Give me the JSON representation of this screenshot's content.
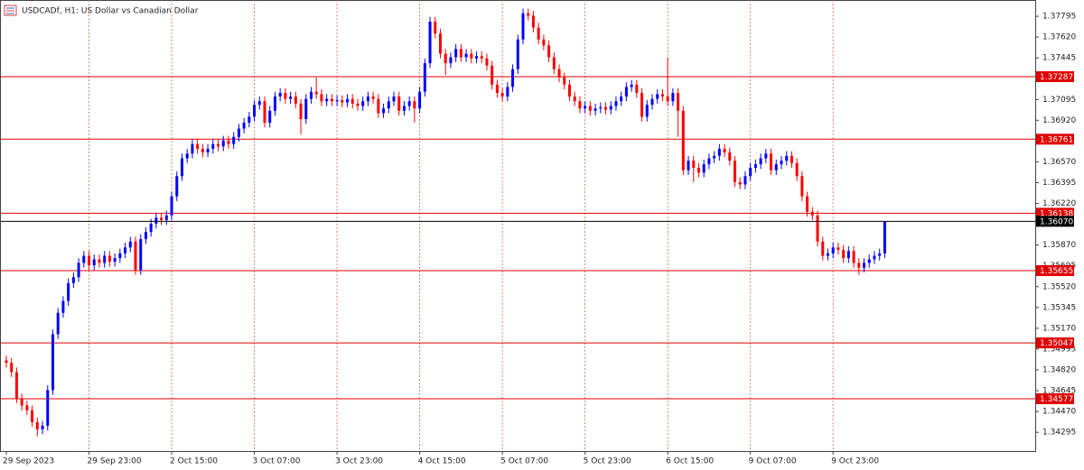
{
  "chart_data": {
    "type": "candlestick",
    "title": "USDCADf, H1:  US Dollar vs Canadian Dollar",
    "categories": [
      "29 Sep 2023",
      null,
      null,
      null,
      null,
      null,
      null,
      null,
      null,
      null,
      null,
      null,
      null,
      null,
      null,
      null,
      "29 Sep 23:00",
      null,
      null,
      null,
      null,
      null,
      null,
      null,
      null,
      null,
      null,
      null,
      null,
      null,
      null,
      null,
      "2 Oct 15:00",
      null,
      null,
      null,
      null,
      null,
      null,
      null,
      null,
      null,
      null,
      null,
      null,
      null,
      null,
      null,
      "3 Oct 07:00",
      null,
      null,
      null,
      null,
      null,
      null,
      null,
      null,
      null,
      null,
      null,
      null,
      null,
      null,
      null,
      "3 Oct 23:00",
      null,
      null,
      null,
      null,
      null,
      null,
      null,
      null,
      null,
      null,
      null,
      null,
      null,
      null,
      null,
      "4 Oct 15:00",
      null,
      null,
      null,
      null,
      null,
      null,
      null,
      null,
      null,
      null,
      null,
      null,
      null,
      null,
      null,
      "5 Oct 07:00",
      null,
      null,
      null,
      null,
      null,
      null,
      null,
      null,
      null,
      null,
      null,
      null,
      null,
      null,
      null,
      "5 Oct 23:00",
      null,
      null,
      null,
      null,
      null,
      null,
      null,
      null,
      null,
      null,
      null,
      null,
      null,
      null,
      null,
      "6 Oct 15:00",
      null,
      null,
      null,
      null,
      null,
      null,
      null,
      null,
      null,
      null,
      null,
      null,
      null,
      null,
      null,
      "9 Oct 07:00",
      null,
      null,
      null,
      null,
      null,
      null,
      null,
      null,
      null,
      null,
      null,
      null,
      null,
      null,
      null,
      "9 Oct 23:00",
      null,
      null,
      null,
      null,
      null,
      null,
      null,
      null,
      null,
      null
    ],
    "ohlc": [
      [
        1.349,
        1.3494,
        1.3484,
        1.3488
      ],
      [
        1.3488,
        1.3492,
        1.3476,
        1.348
      ],
      [
        1.348,
        1.3484,
        1.3454,
        1.3458
      ],
      [
        1.3458,
        1.3462,
        1.3448,
        1.3452
      ],
      [
        1.3452,
        1.3456,
        1.3444,
        1.3448
      ],
      [
        1.3448,
        1.3452,
        1.3434,
        1.3438
      ],
      [
        1.3438,
        1.3442,
        1.3426,
        1.3432
      ],
      [
        1.3432,
        1.3439,
        1.3428,
        1.3435
      ],
      [
        1.3435,
        1.3469,
        1.3431,
        1.3465
      ],
      [
        1.3465,
        1.3516,
        1.3461,
        1.3512
      ],
      [
        1.3512,
        1.3534,
        1.3508,
        1.353
      ],
      [
        1.353,
        1.3544,
        1.3526,
        1.354
      ],
      [
        1.354,
        1.3559,
        1.3536,
        1.3555
      ],
      [
        1.3555,
        1.3564,
        1.3551,
        1.356
      ],
      [
        1.356,
        1.3576,
        1.3556,
        1.3572
      ],
      [
        1.3572,
        1.3582,
        1.3568,
        1.3578
      ],
      [
        1.3578,
        1.3582,
        1.3566,
        1.357
      ],
      [
        1.357,
        1.3579,
        1.3566,
        1.3575
      ],
      [
        1.3575,
        1.3579,
        1.3568,
        1.3572
      ],
      [
        1.3572,
        1.3582,
        1.3568,
        1.3578
      ],
      [
        1.3578,
        1.3582,
        1.3569,
        1.3573
      ],
      [
        1.3573,
        1.358,
        1.3569,
        1.3576
      ],
      [
        1.3576,
        1.3584,
        1.3572,
        1.358
      ],
      [
        1.358,
        1.3589,
        1.3576,
        1.3585
      ],
      [
        1.3585,
        1.3594,
        1.3581,
        1.359
      ],
      [
        1.359,
        1.3594,
        1.3562,
        1.3566
      ],
      [
        1.3566,
        1.3596,
        1.3562,
        1.3592
      ],
      [
        1.3592,
        1.3602,
        1.3588,
        1.3598
      ],
      [
        1.3598,
        1.3609,
        1.3594,
        1.3605
      ],
      [
        1.3605,
        1.3614,
        1.3601,
        1.361
      ],
      [
        1.361,
        1.3614,
        1.3604,
        1.3608
      ],
      [
        1.3608,
        1.3616,
        1.3604,
        1.3612
      ],
      [
        1.3612,
        1.3632,
        1.3608,
        1.3628
      ],
      [
        1.3628,
        1.3649,
        1.3624,
        1.3645
      ],
      [
        1.3645,
        1.3664,
        1.3641,
        1.366
      ],
      [
        1.366,
        1.3668,
        1.3656,
        1.3664
      ],
      [
        1.3664,
        1.3676,
        1.366,
        1.3672
      ],
      [
        1.3672,
        1.3676,
        1.3664,
        1.3668
      ],
      [
        1.3668,
        1.3672,
        1.3661,
        1.3665
      ],
      [
        1.3665,
        1.3672,
        1.3661,
        1.3668
      ],
      [
        1.3668,
        1.3676,
        1.3664,
        1.3672
      ],
      [
        1.3672,
        1.3676,
        1.3666,
        1.367
      ],
      [
        1.367,
        1.3679,
        1.3666,
        1.3675
      ],
      [
        1.3675,
        1.3679,
        1.3668,
        1.3672
      ],
      [
        1.3672,
        1.3682,
        1.3668,
        1.3678
      ],
      [
        1.3678,
        1.3689,
        1.3674,
        1.3685
      ],
      [
        1.3685,
        1.3694,
        1.3681,
        1.369
      ],
      [
        1.369,
        1.3699,
        1.3686,
        1.3695
      ],
      [
        1.3695,
        1.3709,
        1.3691,
        1.3705
      ],
      [
        1.3705,
        1.3712,
        1.3701,
        1.3708
      ],
      [
        1.3708,
        1.3712,
        1.3686,
        1.369
      ],
      [
        1.369,
        1.3704,
        1.3686,
        1.37
      ],
      [
        1.37,
        1.3716,
        1.3696,
        1.3712
      ],
      [
        1.3712,
        1.3719,
        1.3708,
        1.3715
      ],
      [
        1.3715,
        1.3719,
        1.3706,
        1.371
      ],
      [
        1.371,
        1.3716,
        1.3706,
        1.3712
      ],
      [
        1.3712,
        1.3716,
        1.3702,
        1.3706
      ],
      [
        1.3706,
        1.371,
        1.368,
        1.3693
      ],
      [
        1.3693,
        1.3714,
        1.3689,
        1.371
      ],
      [
        1.371,
        1.372,
        1.3706,
        1.3716
      ],
      [
        1.3716,
        1.3728,
        1.371,
        1.3714
      ],
      [
        1.3714,
        1.3718,
        1.3704,
        1.3708
      ],
      [
        1.3708,
        1.3714,
        1.3704,
        1.371
      ],
      [
        1.371,
        1.3714,
        1.3704,
        1.3708
      ],
      [
        1.3708,
        1.3713,
        1.3704,
        1.3709
      ],
      [
        1.3709,
        1.3713,
        1.3703,
        1.3707
      ],
      [
        1.3707,
        1.3714,
        1.3703,
        1.371
      ],
      [
        1.371,
        1.3714,
        1.3702,
        1.3706
      ],
      [
        1.3706,
        1.371,
        1.37,
        1.3704
      ],
      [
        1.3704,
        1.3712,
        1.37,
        1.3708
      ],
      [
        1.3708,
        1.3716,
        1.3704,
        1.3712
      ],
      [
        1.3712,
        1.3716,
        1.3706,
        1.371
      ],
      [
        1.371,
        1.3714,
        1.3694,
        1.3698
      ],
      [
        1.3698,
        1.3706,
        1.3694,
        1.3702
      ],
      [
        1.3702,
        1.3712,
        1.3698,
        1.3708
      ],
      [
        1.3708,
        1.3716,
        1.3704,
        1.3712
      ],
      [
        1.3712,
        1.3716,
        1.3696,
        1.37
      ],
      [
        1.37,
        1.3708,
        1.3696,
        1.3704
      ],
      [
        1.3704,
        1.3712,
        1.37,
        1.3708
      ],
      [
        1.3708,
        1.3712,
        1.369,
        1.3702
      ],
      [
        1.3702,
        1.372,
        1.3698,
        1.3716
      ],
      [
        1.3716,
        1.3744,
        1.3712,
        1.374
      ],
      [
        1.374,
        1.3779,
        1.3736,
        1.3775
      ],
      [
        1.3775,
        1.3779,
        1.3761,
        1.3765
      ],
      [
        1.3765,
        1.3769,
        1.3744,
        1.3748
      ],
      [
        1.3748,
        1.3752,
        1.373,
        1.374
      ],
      [
        1.374,
        1.3749,
        1.3736,
        1.3745
      ],
      [
        1.3745,
        1.3756,
        1.3741,
        1.3752
      ],
      [
        1.3752,
        1.3756,
        1.3741,
        1.3745
      ],
      [
        1.3745,
        1.3752,
        1.3741,
        1.3748
      ],
      [
        1.3748,
        1.3752,
        1.374,
        1.3744
      ],
      [
        1.3744,
        1.375,
        1.374,
        1.3746
      ],
      [
        1.3746,
        1.375,
        1.374,
        1.3744
      ],
      [
        1.3744,
        1.3748,
        1.3734,
        1.3738
      ],
      [
        1.3738,
        1.3742,
        1.3718,
        1.3722
      ],
      [
        1.3722,
        1.3726,
        1.3711,
        1.3715
      ],
      [
        1.3715,
        1.3719,
        1.3708,
        1.3712
      ],
      [
        1.3712,
        1.3724,
        1.3708,
        1.372
      ],
      [
        1.372,
        1.3739,
        1.3716,
        1.3735
      ],
      [
        1.3735,
        1.3764,
        1.3731,
        1.376
      ],
      [
        1.376,
        1.3786,
        1.3756,
        1.3782
      ],
      [
        1.3782,
        1.3786,
        1.3776,
        1.378
      ],
      [
        1.378,
        1.3784,
        1.3766,
        1.377
      ],
      [
        1.377,
        1.3774,
        1.3756,
        1.376
      ],
      [
        1.376,
        1.3764,
        1.3751,
        1.3755
      ],
      [
        1.3755,
        1.3759,
        1.3741,
        1.3745
      ],
      [
        1.3745,
        1.3749,
        1.3731,
        1.3735
      ],
      [
        1.3735,
        1.3739,
        1.3724,
        1.3728
      ],
      [
        1.3728,
        1.3732,
        1.3718,
        1.3722
      ],
      [
        1.3722,
        1.3726,
        1.3708,
        1.3712
      ],
      [
        1.3712,
        1.3716,
        1.3704,
        1.3708
      ],
      [
        1.3708,
        1.3712,
        1.3698,
        1.3702
      ],
      [
        1.3702,
        1.3708,
        1.3698,
        1.3704
      ],
      [
        1.3704,
        1.3708,
        1.3696,
        1.37
      ],
      [
        1.37,
        1.3706,
        1.3696,
        1.3702
      ],
      [
        1.3702,
        1.3707,
        1.3698,
        1.3703
      ],
      [
        1.3703,
        1.3707,
        1.3697,
        1.3701
      ],
      [
        1.3701,
        1.3708,
        1.3697,
        1.3704
      ],
      [
        1.3704,
        1.3712,
        1.37,
        1.3708
      ],
      [
        1.3708,
        1.3716,
        1.3704,
        1.3712
      ],
      [
        1.3712,
        1.3724,
        1.3708,
        1.372
      ],
      [
        1.372,
        1.3726,
        1.3716,
        1.3722
      ],
      [
        1.3722,
        1.3726,
        1.3711,
        1.3715
      ],
      [
        1.3715,
        1.3719,
        1.3691,
        1.3695
      ],
      [
        1.3695,
        1.3709,
        1.3691,
        1.3705
      ],
      [
        1.3705,
        1.3714,
        1.3701,
        1.371
      ],
      [
        1.371,
        1.3718,
        1.3706,
        1.3714
      ],
      [
        1.3714,
        1.3718,
        1.3708,
        1.3712
      ],
      [
        1.3712,
        1.3745,
        1.3704,
        1.3708
      ],
      [
        1.3708,
        1.3719,
        1.3704,
        1.3715
      ],
      [
        1.3715,
        1.3719,
        1.3678,
        1.37
      ],
      [
        1.37,
        1.3704,
        1.3646,
        1.365
      ],
      [
        1.365,
        1.3662,
        1.3646,
        1.3658
      ],
      [
        1.3658,
        1.3662,
        1.364,
        1.3652
      ],
      [
        1.3652,
        1.3656,
        1.3644,
        1.3648
      ],
      [
        1.3648,
        1.3659,
        1.3644,
        1.3655
      ],
      [
        1.3655,
        1.3664,
        1.3651,
        1.366
      ],
      [
        1.366,
        1.3666,
        1.3656,
        1.3662
      ],
      [
        1.3662,
        1.3672,
        1.3658,
        1.3668
      ],
      [
        1.3668,
        1.3672,
        1.3661,
        1.3665
      ],
      [
        1.3665,
        1.3669,
        1.3654,
        1.3658
      ],
      [
        1.3658,
        1.3662,
        1.3636,
        1.364
      ],
      [
        1.364,
        1.3644,
        1.3634,
        1.3638
      ],
      [
        1.3638,
        1.3649,
        1.3634,
        1.3645
      ],
      [
        1.3645,
        1.3656,
        1.3641,
        1.3652
      ],
      [
        1.3652,
        1.3659,
        1.3648,
        1.3655
      ],
      [
        1.3655,
        1.3664,
        1.3651,
        1.366
      ],
      [
        1.366,
        1.3668,
        1.3656,
        1.3664
      ],
      [
        1.3664,
        1.3668,
        1.3646,
        1.365
      ],
      [
        1.365,
        1.3659,
        1.3646,
        1.3655
      ],
      [
        1.3655,
        1.3662,
        1.3651,
        1.3658
      ],
      [
        1.3658,
        1.3666,
        1.3654,
        1.3662
      ],
      [
        1.3662,
        1.3666,
        1.3652,
        1.3656
      ],
      [
        1.3656,
        1.366,
        1.3641,
        1.3645
      ],
      [
        1.3645,
        1.3649,
        1.3624,
        1.3628
      ],
      [
        1.3628,
        1.3632,
        1.3611,
        1.3615
      ],
      [
        1.3615,
        1.3619,
        1.3608,
        1.3612
      ],
      [
        1.3612,
        1.3616,
        1.3586,
        1.359
      ],
      [
        1.359,
        1.3594,
        1.3574,
        1.3578
      ],
      [
        1.3578,
        1.3584,
        1.3574,
        1.358
      ],
      [
        1.358,
        1.3589,
        1.3576,
        1.3585
      ],
      [
        1.3585,
        1.3589,
        1.3579,
        1.3583
      ],
      [
        1.3583,
        1.3587,
        1.3572,
        1.3576
      ],
      [
        1.3576,
        1.3586,
        1.3572,
        1.3582
      ],
      [
        1.3582,
        1.3586,
        1.3568,
        1.3572
      ],
      [
        1.3572,
        1.3576,
        1.3562,
        1.3568
      ],
      [
        1.3568,
        1.3576,
        1.3564,
        1.3572
      ],
      [
        1.3572,
        1.3579,
        1.3568,
        1.3575
      ],
      [
        1.3575,
        1.3582,
        1.3571,
        1.3578
      ],
      [
        1.3578,
        1.3584,
        1.3574,
        1.358
      ],
      [
        1.358,
        1.3607,
        1.3576,
        1.3607
      ]
    ],
    "up_color": "#0000ff",
    "down_color": "#ff0000",
    "ylim": [
      1.34137,
      1.37932
    ],
    "yticks": [
      1.37795,
      {
        "value": 1.3762,
        "label": "1.37620"
      },
      1.37445,
      1.37095,
      {
        "value": 1.3692,
        "label": "1.36920"
      },
      {
        "value": 1.3657,
        "label": "1.36570"
      },
      1.36395,
      {
        "value": 1.3622,
        "label": "1.36220"
      },
      {
        "value": 1.3587,
        "label": "1.35870"
      },
      1.35695,
      {
        "value": 1.3552,
        "label": "1.35520"
      },
      1.35345,
      {
        "value": 1.3517,
        "label": "1.35170"
      },
      1.34995,
      {
        "value": 1.3482,
        "label": "1.34820"
      },
      1.34645,
      {
        "value": 1.3447,
        "label": "1.34470"
      },
      1.34295
    ],
    "levels": [
      1.37287,
      1.36761,
      1.36138,
      1.35655,
      1.35047,
      1.34577
    ],
    "level_color": "#e00000",
    "current_price": {
      "value": 1.3607,
      "label": "1.36070"
    },
    "grid": true
  }
}
